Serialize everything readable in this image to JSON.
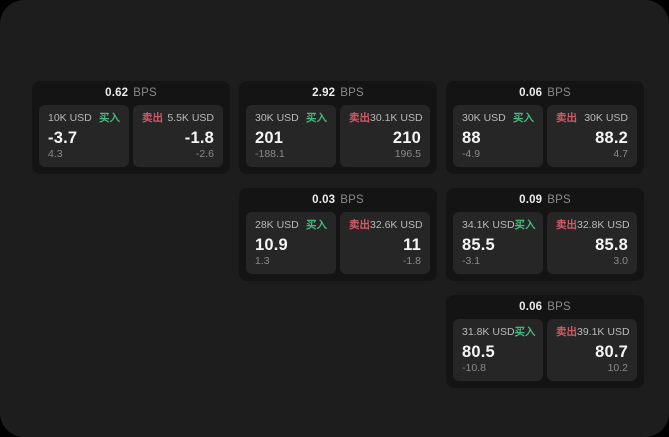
{
  "theme": {
    "outer_bg": "#000000",
    "panel_bg": "#1d1d1d",
    "card_bg": "#141414",
    "tile_bg": "#262626",
    "buy_color": "#46b97c",
    "sell_color": "#d25a66"
  },
  "labels": {
    "bps_unit": "BPS",
    "buy": "买入",
    "sell": "卖出"
  },
  "cards": [
    {
      "bps": "0.62",
      "buy": {
        "amount": "10K USD",
        "price": "-3.7",
        "delta": "4.3"
      },
      "sell": {
        "amount": "5.5K USD",
        "price": "-1.8",
        "delta": "-2.6"
      }
    },
    {
      "bps": "2.92",
      "buy": {
        "amount": "30K USD",
        "price": "201",
        "delta": "-188.1"
      },
      "sell": {
        "amount": "30.1K USD",
        "price": "210",
        "delta": "196.5"
      }
    },
    {
      "bps": "0.06",
      "buy": {
        "amount": "30K USD",
        "price": "88",
        "delta": "-4.9"
      },
      "sell": {
        "amount": "30K USD",
        "price": "88.2",
        "delta": "4.7"
      }
    },
    {
      "bps": "0.03",
      "buy": {
        "amount": "28K USD",
        "price": "10.9",
        "delta": "1.3"
      },
      "sell": {
        "amount": "32.6K USD",
        "price": "11",
        "delta": "-1.8"
      }
    },
    {
      "bps": "0.09",
      "buy": {
        "amount": "34.1K USD",
        "price": "85.5",
        "delta": "-3.1"
      },
      "sell": {
        "amount": "32.8K USD",
        "price": "85.8",
        "delta": "3.0"
      }
    },
    {
      "bps": "0.06",
      "buy": {
        "amount": "31.8K USD",
        "price": "80.5",
        "delta": "-10.8"
      },
      "sell": {
        "amount": "39.1K USD",
        "price": "80.7",
        "delta": "10.2"
      }
    }
  ]
}
